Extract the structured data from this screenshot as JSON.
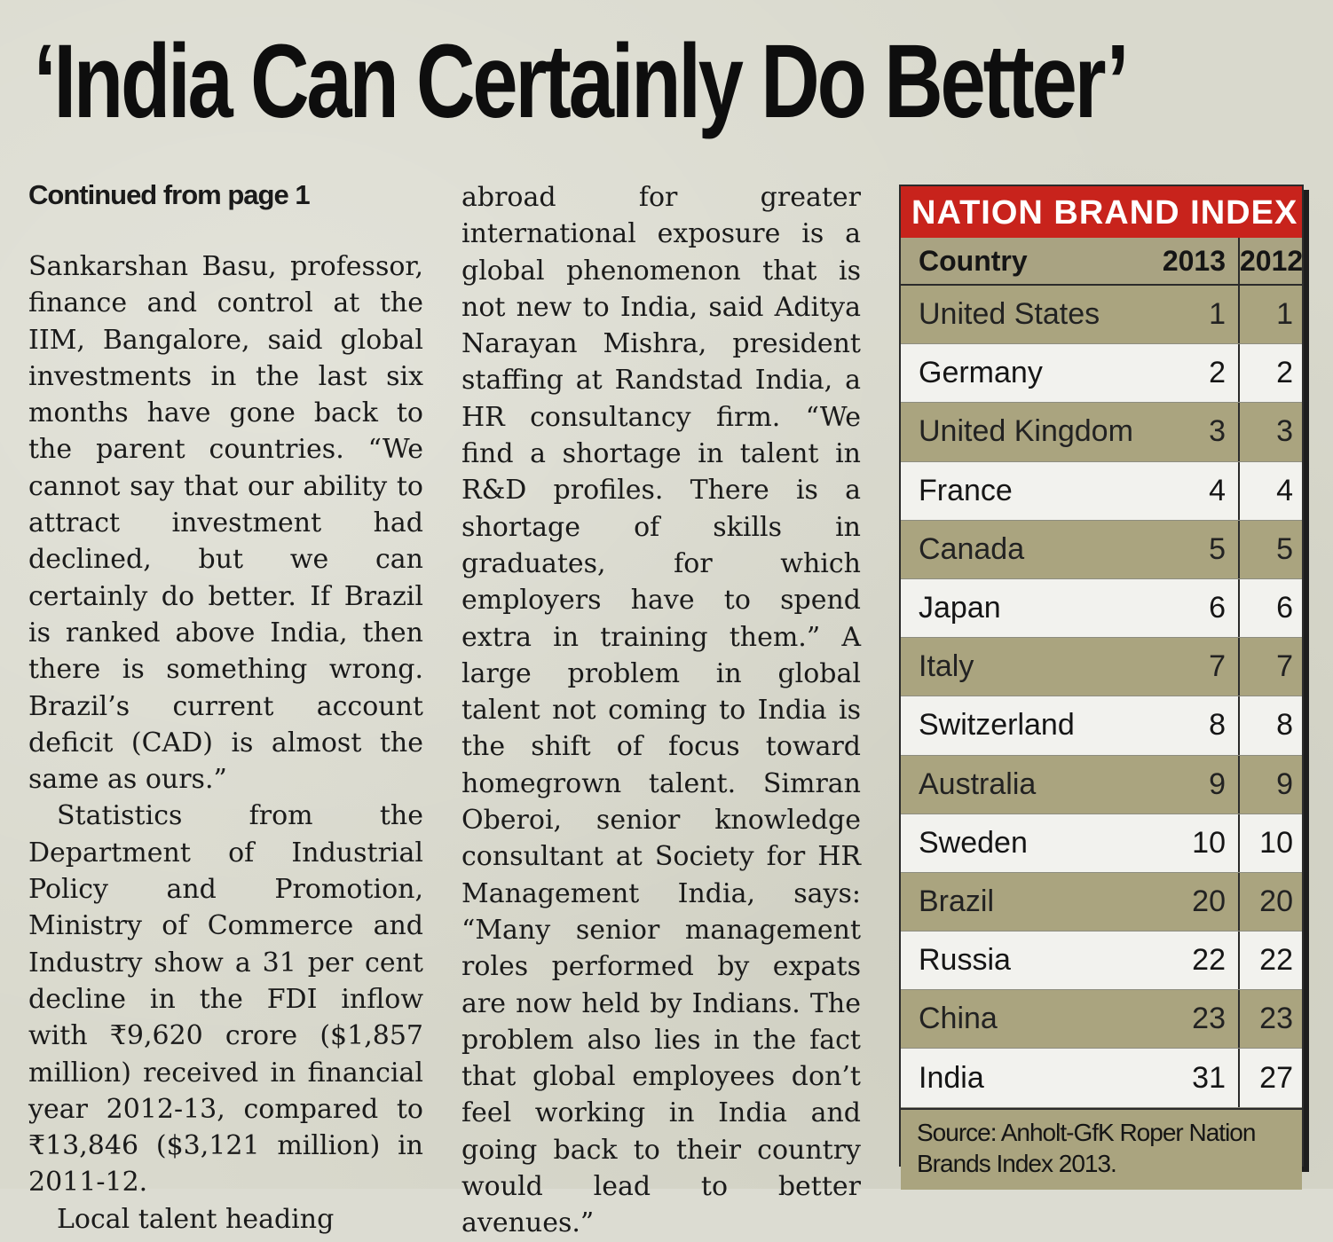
{
  "headline": "‘India Can Certainly Do Better’",
  "continued": "Continued from page 1",
  "column1": {
    "p1": "Sankarshan Basu, professor, finance and control at the IIM, Bangalore, said global investments in the last six months have gone back to the parent countries. “We cannot say that our ability to attract investment had declined, but we can certainly do better. If Brazil is ranked above India, then there is something wrong. Brazil’s current account deficit (CAD) is almost the same as ours.”",
    "p2": "Statistics from the Department of Industrial Policy and Promotion, Ministry of Commerce and Industry show a 31 per cent decline in the FDI inflow with ₹9,620 crore ($1,857 million) received in financial year 2012-13, compared to ₹13,846 ($3,121 million) in 2011-12.",
    "p3": "Local talent heading"
  },
  "column2": {
    "p1": "abroad for greater international exposure is a global phenomenon that is not new to India, said Aditya Narayan Mishra, president staffing at Randstad India, a HR consultancy firm. “We find a shortage in talent in R&D profiles. There is a shortage of skills in graduates, for which employers have to spend extra in training them.” A large problem in global talent not coming to India is the shift of focus toward homegrown talent. Simran Oberoi, senior knowledge consultant at Society for HR Management India, says: “Many senior management roles performed by expats are now held by Indians. The problem also lies in the fact that global employees don’t feel working in India and going back to their country would lead to better avenues.”"
  },
  "table": {
    "title": "NATION BRAND INDEX",
    "headers": {
      "country": "Country",
      "y2013": "2013",
      "y2012": "2012"
    },
    "rows": [
      {
        "country": "United States",
        "y2013": "1",
        "y2012": "1"
      },
      {
        "country": "Germany",
        "y2013": "2",
        "y2012": "2"
      },
      {
        "country": "United Kingdom",
        "y2013": "3",
        "y2012": "3"
      },
      {
        "country": "France",
        "y2013": "4",
        "y2012": "4"
      },
      {
        "country": "Canada",
        "y2013": "5",
        "y2012": "5"
      },
      {
        "country": "Japan",
        "y2013": "6",
        "y2012": "6"
      },
      {
        "country": "Italy",
        "y2013": "7",
        "y2012": "7"
      },
      {
        "country": "Switzerland",
        "y2013": "8",
        "y2012": "8"
      },
      {
        "country": "Australia",
        "y2013": "9",
        "y2012": "9"
      },
      {
        "country": "Sweden",
        "y2013": "10",
        "y2012": "10"
      },
      {
        "country": "Brazil",
        "y2013": "20",
        "y2012": "20"
      },
      {
        "country": "Russia",
        "y2013": "22",
        "y2012": "22"
      },
      {
        "country": "China",
        "y2013": "23",
        "y2012": "23"
      },
      {
        "country": "India",
        "y2013": "31",
        "y2012": "27"
      }
    ],
    "source": "Source: Anholt-GfK Roper Nation Brands Index 2013."
  },
  "colors": {
    "title_red": "#c8231c",
    "shade": "#aaa47f",
    "paper": "#d9d9cd"
  }
}
